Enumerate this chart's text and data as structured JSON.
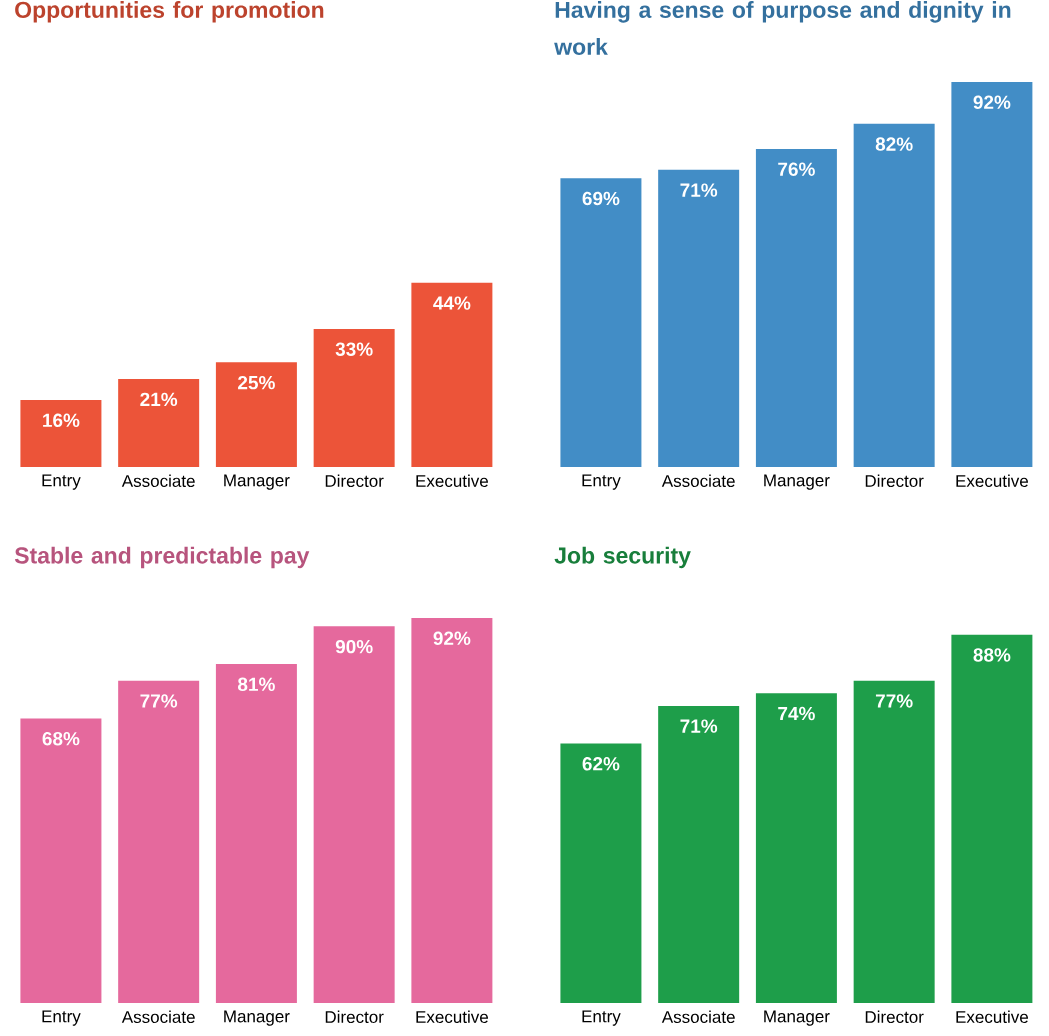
{
  "chart_data": [
    {
      "type": "bar",
      "title": "Opportunities for promotion",
      "categories": [
        "Entry",
        "Associate",
        "Manager",
        "Director",
        "Executive"
      ],
      "values": [
        16,
        21,
        25,
        33,
        44
      ],
      "color": "#ec5439",
      "value_labels": [
        "16%",
        "21%",
        "25%",
        "33%",
        "44%"
      ]
    },
    {
      "type": "bar",
      "title": "Having a sense of purpose and dignity in work",
      "categories": [
        "Entry",
        "Associate",
        "Manager",
        "Director",
        "Executive"
      ],
      "values": [
        69,
        71,
        76,
        82,
        92
      ],
      "color": "#428dc6",
      "value_labels": [
        "69%",
        "71%",
        "76%",
        "82%",
        "92%"
      ]
    },
    {
      "type": "bar",
      "title": "Stable and predictable pay",
      "categories": [
        "Entry",
        "Associate",
        "Manager",
        "Director",
        "Executive"
      ],
      "values": [
        68,
        77,
        81,
        90,
        92
      ],
      "color": "#e5699d",
      "value_labels": [
        "68%",
        "77%",
        "81%",
        "90%",
        "92%"
      ]
    },
    {
      "type": "bar",
      "title": "Job security",
      "categories": [
        "Entry",
        "Associate",
        "Manager",
        "Director",
        "Executive"
      ],
      "values": [
        62,
        71,
        74,
        77,
        88
      ],
      "color": "#1e9e4a",
      "value_labels": [
        "62%",
        "71%",
        "74%",
        "77%",
        "88%"
      ]
    }
  ]
}
